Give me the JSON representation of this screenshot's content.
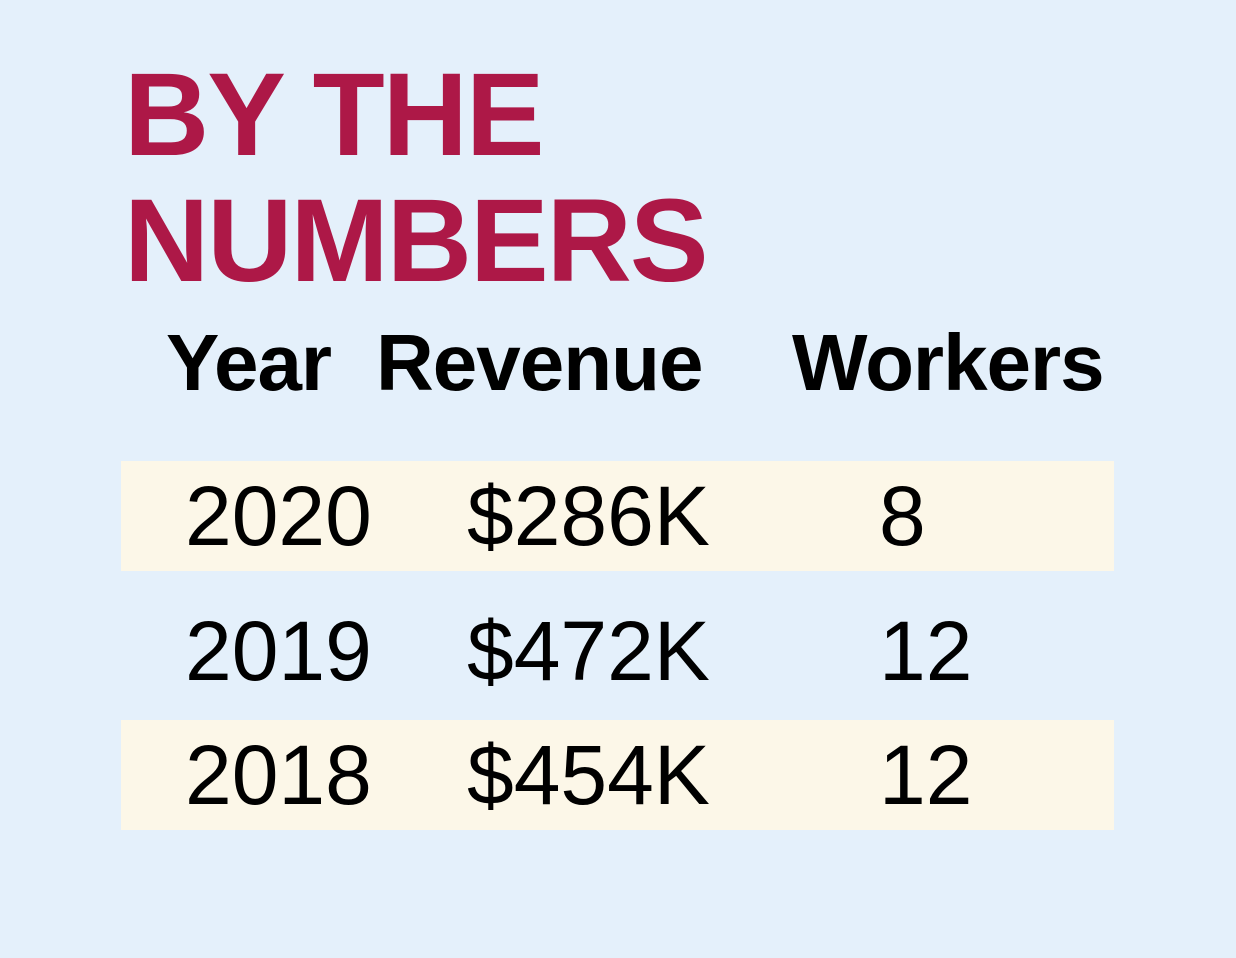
{
  "title": {
    "line1": "BY THE",
    "line2": "NUMBERS"
  },
  "colors": {
    "background": "#e4f0fb",
    "title": "#ad1847",
    "row_shade": "#fcf7e8",
    "text": "#000000"
  },
  "chart_data": {
    "type": "table",
    "title": "BY THE NUMBERS",
    "columns": [
      "Year",
      "Revenue",
      "Workers"
    ],
    "rows": [
      [
        "2020",
        "$286K",
        "8"
      ],
      [
        "2019",
        "$472K",
        "12"
      ],
      [
        "2018",
        "$454K",
        "12"
      ]
    ]
  }
}
